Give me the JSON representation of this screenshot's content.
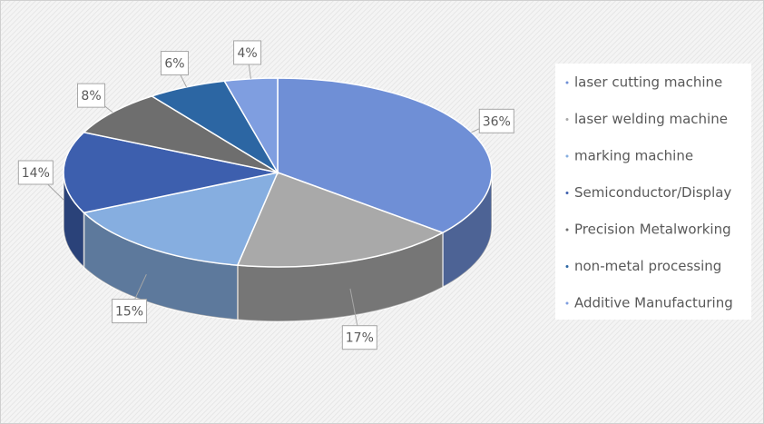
{
  "chart_data": {
    "type": "pie",
    "style": "3d",
    "categories": [
      "laser cutting machine",
      "laser welding machine",
      "marking machine",
      "Semiconductor/Display",
      "Precision Metalworking",
      "non-metal processing",
      "Additive Manufacturing"
    ],
    "values": [
      36,
      17,
      15,
      14,
      8,
      6,
      4
    ],
    "value_labels": [
      "36%",
      "17%",
      "15%",
      "14%",
      "8%",
      "6%",
      "4%"
    ],
    "colors": [
      "#6f8fd6",
      "#a9a9a9",
      "#86aee0",
      "#3d5fae",
      "#6e6e6e",
      "#2c66a3",
      "#7f9ee0"
    ],
    "legend": "right"
  }
}
